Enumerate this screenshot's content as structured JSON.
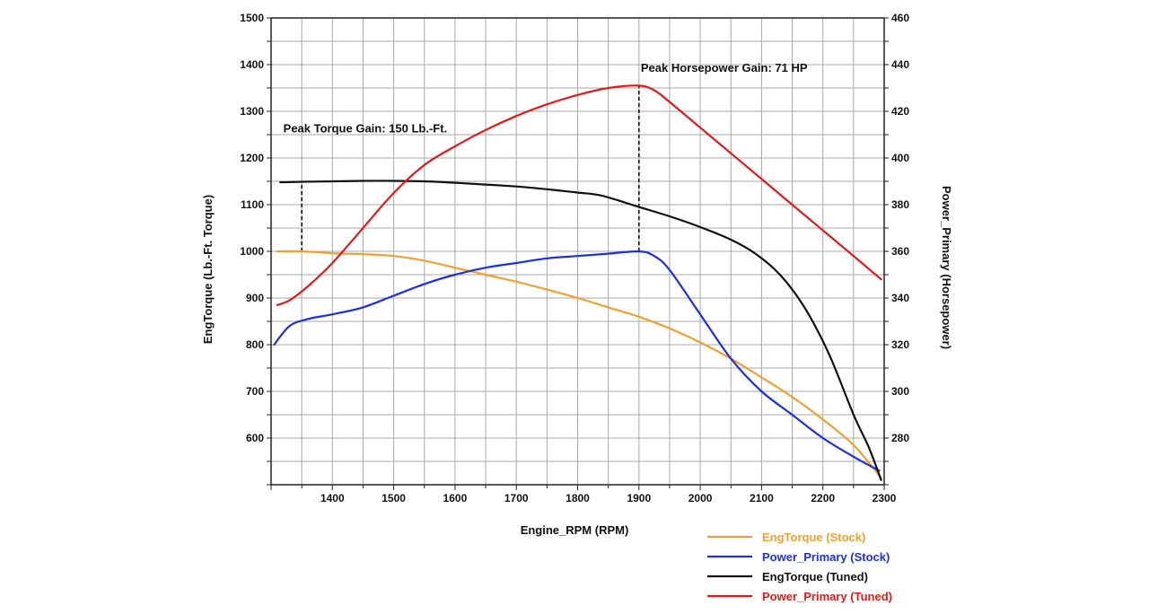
{
  "chart_data": {
    "type": "line",
    "xlabel": "Engine_RPM (RPM)",
    "ylabel": "EngTorque (Lb.-Ft. Torque)",
    "y2label": "Power_Primary (Horsepower)",
    "xlim": [
      1300,
      2300
    ],
    "ylim": [
      500,
      1500
    ],
    "y2lim": [
      260,
      460
    ],
    "x_ticks": [
      1400,
      1500,
      1600,
      1700,
      1800,
      1900,
      2000,
      2100,
      2200,
      2300
    ],
    "y_ticks": [
      600,
      700,
      800,
      900,
      1000,
      1100,
      1200,
      1300,
      1400,
      1500
    ],
    "y2_ticks": [
      280,
      300,
      320,
      340,
      360,
      380,
      400,
      420,
      440,
      460
    ],
    "grid": true,
    "legend_position": "bottom-right",
    "annotations": [
      {
        "text": "Peak Torque Gain: 150 Lb.-Ft.",
        "x": 1350,
        "y_from": 1000,
        "y_to": 1150,
        "axis": "left",
        "text_x": 1320,
        "text_y": 1255
      },
      {
        "text": "Peak Horsepower Gain: 71 HP",
        "x": 1900,
        "y_from": 360,
        "y_to": 431,
        "axis": "right",
        "text_x": 1903,
        "text_y": 437
      }
    ],
    "series": [
      {
        "name": "EngTorque (Stock)",
        "axis": "left",
        "color": "#f0a030",
        "x": [
          1310,
          1350,
          1400,
          1450,
          1500,
          1550,
          1600,
          1650,
          1700,
          1750,
          1800,
          1850,
          1900,
          1950,
          2000,
          2050,
          2100,
          2150,
          2200,
          2250,
          2295
        ],
        "y": [
          1000,
          1000,
          996,
          994,
          990,
          980,
          965,
          950,
          935,
          918,
          900,
          880,
          860,
          835,
          805,
          770,
          730,
          688,
          640,
          585,
          515
        ]
      },
      {
        "name": "Power_Primary (Stock)",
        "axis": "right",
        "color": "#1e2ee6",
        "x": [
          1305,
          1330,
          1360,
          1400,
          1450,
          1500,
          1550,
          1600,
          1650,
          1700,
          1750,
          1800,
          1850,
          1900,
          1925,
          1950,
          2000,
          2050,
          2100,
          2150,
          2200,
          2250,
          2292
        ],
        "y": [
          320,
          328,
          331,
          333,
          336,
          341,
          346,
          350,
          353,
          355,
          357,
          358,
          359,
          360,
          358,
          352,
          333,
          314,
          300,
          290,
          280,
          272,
          266
        ]
      },
      {
        "name": "EngTorque (Tuned)",
        "axis": "left",
        "color": "#111111",
        "x": [
          1315,
          1350,
          1400,
          1450,
          1500,
          1550,
          1600,
          1650,
          1700,
          1750,
          1800,
          1840,
          1900,
          1950,
          2000,
          2050,
          2090,
          2130,
          2170,
          2210,
          2250,
          2275,
          2295
        ],
        "y": [
          1148,
          1149,
          1150,
          1151,
          1151,
          1150,
          1147,
          1143,
          1139,
          1133,
          1126,
          1119,
          1095,
          1075,
          1052,
          1025,
          995,
          950,
          880,
          780,
          650,
          580,
          510
        ]
      },
      {
        "name": "Power_Primary (Tuned)",
        "axis": "right",
        "color": "#e01a1a",
        "x": [
          1310,
          1330,
          1360,
          1400,
          1450,
          1500,
          1550,
          1600,
          1650,
          1700,
          1750,
          1800,
          1850,
          1900,
          1925,
          1950,
          2000,
          2050,
          2100,
          2150,
          2200,
          2250,
          2295
        ],
        "y": [
          337,
          339,
          345,
          355,
          370,
          385,
          397,
          405,
          412,
          418,
          423,
          427,
          430,
          431,
          429,
          424,
          413,
          402,
          391,
          380,
          369,
          358,
          348
        ]
      }
    ]
  }
}
